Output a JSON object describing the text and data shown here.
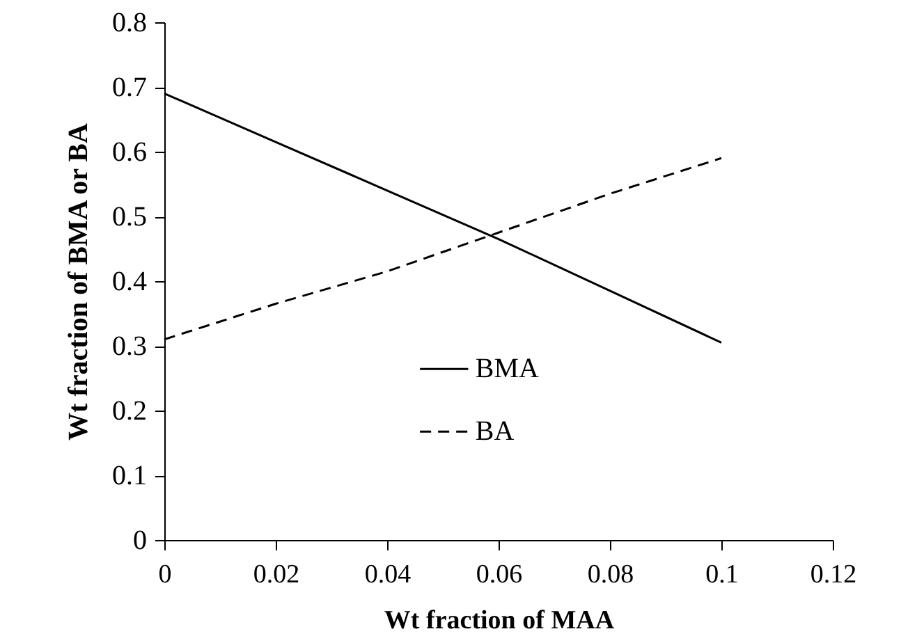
{
  "chart_data": {
    "type": "line",
    "xlabel": "Wt fraction of MAA",
    "ylabel": "Wt fraction of BMA or BA",
    "x": [
      0,
      0.02,
      0.04,
      0.06,
      0.08,
      0.1
    ],
    "series": [
      {
        "name": "BMA",
        "color": "#000000",
        "line_style": "solid",
        "values": [
          0.69,
          0.615,
          0.54,
          0.465,
          0.385,
          0.305
        ]
      },
      {
        "name": "BA",
        "color": "#000000",
        "line_style": "dashed",
        "values": [
          0.31,
          0.365,
          0.415,
          0.475,
          0.535,
          0.59
        ]
      }
    ],
    "xlim": [
      0,
      0.12
    ],
    "xticks": [
      0,
      0.02,
      0.04,
      0.06,
      0.08,
      0.1,
      0.12
    ],
    "ylim": [
      0,
      0.8
    ],
    "yticks": [
      0,
      0.1,
      0.2,
      0.3,
      0.4,
      0.5,
      0.6,
      0.7,
      0.8
    ],
    "grid": false,
    "legend": "bottom",
    "marker": "none"
  }
}
